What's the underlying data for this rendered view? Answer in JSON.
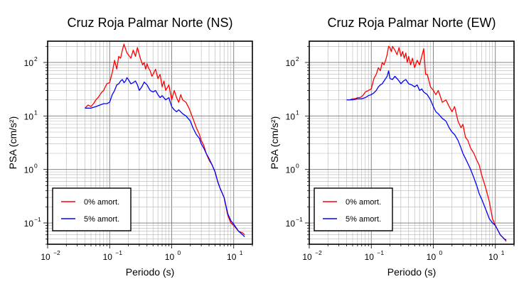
{
  "chart_data": [
    {
      "type": "line",
      "title": "Cruz Roja Palmar Norte (NS)",
      "xlabel": "Periodo (s)",
      "ylabel": "PSA (cm/s²)",
      "xscale": "log",
      "yscale": "log",
      "xlim": [
        0.01,
        20
      ],
      "ylim": [
        0.04,
        250
      ],
      "grid": true,
      "legend_position": "bottom-left",
      "x_ticks": [
        {
          "value": 0.01,
          "base": "10",
          "exp": "−2"
        },
        {
          "value": 0.1,
          "base": "10",
          "exp": "−1"
        },
        {
          "value": 1,
          "base": "10",
          "exp": "0"
        },
        {
          "value": 10,
          "base": "10",
          "exp": "1"
        }
      ],
      "y_ticks": [
        {
          "value": 0.1,
          "base": "10",
          "exp": "−1"
        },
        {
          "value": 1,
          "base": "10",
          "exp": "0"
        },
        {
          "value": 10,
          "base": "10",
          "exp": "1"
        },
        {
          "value": 100,
          "base": "10",
          "exp": "2"
        }
      ],
      "series": [
        {
          "name": "0% amort.",
          "color": "#ff0000",
          "x": [
            0.04,
            0.045,
            0.05,
            0.055,
            0.06,
            0.065,
            0.07,
            0.075,
            0.08,
            0.085,
            0.09,
            0.1,
            0.11,
            0.12,
            0.13,
            0.14,
            0.15,
            0.16,
            0.17,
            0.18,
            0.19,
            0.2,
            0.22,
            0.24,
            0.26,
            0.28,
            0.3,
            0.32,
            0.34,
            0.36,
            0.38,
            0.4,
            0.42,
            0.45,
            0.48,
            0.5,
            0.55,
            0.6,
            0.65,
            0.7,
            0.75,
            0.8,
            0.9,
            1.0,
            1.1,
            1.2,
            1.3,
            1.4,
            1.5,
            1.7,
            1.9,
            2.0,
            2.2,
            2.5,
            2.8,
            3.0,
            3.3,
            3.6,
            4.0,
            4.5,
            5.0,
            5.5,
            6.0,
            7.0,
            8.0,
            9.0,
            10.0,
            12.0,
            14.0,
            15.0
          ],
          "y": [
            14,
            16,
            15,
            17,
            20,
            22,
            25,
            28,
            30,
            35,
            40,
            42,
            65,
            110,
            75,
            130,
            120,
            170,
            220,
            180,
            150,
            140,
            120,
            170,
            130,
            190,
            140,
            110,
            90,
            100,
            75,
            95,
            80,
            70,
            55,
            60,
            75,
            50,
            60,
            35,
            45,
            30,
            38,
            20,
            30,
            22,
            18,
            25,
            20,
            18,
            14,
            12,
            9,
            6,
            4.5,
            3.5,
            2.8,
            2.0,
            1.5,
            1.2,
            0.9,
            0.6,
            0.45,
            0.3,
            0.14,
            0.1,
            0.09,
            0.07,
            0.065,
            0.06
          ]
        },
        {
          "name": "5% amort.",
          "color": "#0000ff",
          "x": [
            0.04,
            0.05,
            0.06,
            0.07,
            0.08,
            0.09,
            0.1,
            0.11,
            0.12,
            0.13,
            0.14,
            0.15,
            0.16,
            0.17,
            0.18,
            0.19,
            0.2,
            0.22,
            0.24,
            0.26,
            0.28,
            0.3,
            0.33,
            0.36,
            0.4,
            0.45,
            0.5,
            0.55,
            0.6,
            0.65,
            0.7,
            0.8,
            0.9,
            1.0,
            1.1,
            1.2,
            1.3,
            1.5,
            1.7,
            2.0,
            2.2,
            2.5,
            2.8,
            3.0,
            3.3,
            3.6,
            4.0,
            4.5,
            5.0,
            5.5,
            6.0,
            7.0,
            8.0,
            9.0,
            10.0,
            12.0,
            14.0,
            15.0
          ],
          "y": [
            14,
            14,
            15,
            16,
            17,
            17,
            18,
            25,
            30,
            38,
            40,
            45,
            48,
            42,
            45,
            52,
            48,
            40,
            42,
            45,
            38,
            30,
            35,
            43,
            38,
            30,
            28,
            30,
            25,
            22,
            24,
            20,
            22,
            15,
            13,
            12,
            13,
            11,
            10,
            8,
            6,
            4.5,
            3.8,
            3.0,
            2.5,
            2.0,
            1.6,
            1.2,
            0.9,
            0.6,
            0.45,
            0.3,
            0.15,
            0.11,
            0.095,
            0.07,
            0.06,
            0.055
          ]
        }
      ]
    },
    {
      "type": "line",
      "title": "Cruz Roja Palmar Norte (EW)",
      "xlabel": "Periodo (s)",
      "ylabel": "PSA (cm/s²)",
      "xscale": "log",
      "yscale": "log",
      "xlim": [
        0.01,
        20
      ],
      "ylim": [
        0.04,
        250
      ],
      "grid": true,
      "legend_position": "bottom-left",
      "x_ticks": [
        {
          "value": 0.01,
          "base": "10",
          "exp": "−2"
        },
        {
          "value": 0.1,
          "base": "10",
          "exp": "−1"
        },
        {
          "value": 1,
          "base": "10",
          "exp": "0"
        },
        {
          "value": 10,
          "base": "10",
          "exp": "1"
        }
      ],
      "y_ticks": [
        {
          "value": 0.1,
          "base": "10",
          "exp": "−1"
        },
        {
          "value": 1,
          "base": "10",
          "exp": "0"
        },
        {
          "value": 10,
          "base": "10",
          "exp": "1"
        },
        {
          "value": 100,
          "base": "10",
          "exp": "2"
        }
      ],
      "series": [
        {
          "name": "0% amort.",
          "color": "#ff0000",
          "x": [
            0.04,
            0.045,
            0.05,
            0.055,
            0.06,
            0.065,
            0.07,
            0.075,
            0.08,
            0.09,
            0.1,
            0.11,
            0.12,
            0.13,
            0.14,
            0.15,
            0.16,
            0.17,
            0.18,
            0.19,
            0.2,
            0.21,
            0.22,
            0.24,
            0.26,
            0.28,
            0.3,
            0.32,
            0.34,
            0.36,
            0.38,
            0.4,
            0.43,
            0.46,
            0.5,
            0.55,
            0.6,
            0.65,
            0.7,
            0.75,
            0.8,
            0.9,
            1.0,
            1.1,
            1.2,
            1.4,
            1.6,
            1.8,
            2.0,
            2.2,
            2.5,
            2.8,
            3.0,
            3.3,
            3.6,
            4.0,
            4.5,
            5.0,
            5.5,
            6.0,
            7.0,
            8.0,
            9.0,
            10.0,
            12.0,
            14.0,
            15.0
          ],
          "y": [
            20,
            20,
            21,
            21,
            22,
            22,
            23,
            25,
            28,
            30,
            32,
            50,
            60,
            80,
            70,
            100,
            90,
            110,
            140,
            200,
            190,
            160,
            200,
            170,
            140,
            190,
            130,
            160,
            120,
            150,
            100,
            130,
            90,
            120,
            80,
            110,
            90,
            130,
            180,
            60,
            60,
            35,
            30,
            25,
            30,
            18,
            20,
            15,
            12,
            15,
            8,
            6,
            7,
            4.0,
            3.5,
            2.5,
            2.0,
            1.5,
            1.2,
            0.8,
            0.45,
            0.25,
            0.12,
            0.09,
            0.06,
            0.05,
            0.045
          ]
        },
        {
          "name": "5% amort.",
          "color": "#0000ff",
          "x": [
            0.04,
            0.05,
            0.06,
            0.07,
            0.08,
            0.09,
            0.1,
            0.11,
            0.12,
            0.13,
            0.14,
            0.15,
            0.16,
            0.17,
            0.18,
            0.19,
            0.2,
            0.22,
            0.24,
            0.26,
            0.28,
            0.3,
            0.33,
            0.36,
            0.4,
            0.45,
            0.5,
            0.55,
            0.6,
            0.65,
            0.7,
            0.8,
            0.9,
            1.0,
            1.1,
            1.2,
            1.4,
            1.6,
            1.8,
            2.0,
            2.2,
            2.5,
            2.8,
            3.0,
            3.3,
            3.6,
            4.0,
            4.5,
            5.0,
            5.5,
            6.0,
            7.0,
            8.0,
            9.0,
            10.0,
            12.0,
            14.0,
            15.0
          ],
          "y": [
            20,
            20,
            21,
            21,
            22,
            24,
            25,
            27,
            30,
            35,
            38,
            40,
            45,
            50,
            55,
            70,
            50,
            48,
            55,
            50,
            45,
            40,
            45,
            48,
            40,
            38,
            35,
            38,
            30,
            32,
            28,
            25,
            20,
            15,
            12,
            11,
            9,
            8,
            6,
            5,
            4.5,
            3.5,
            2.5,
            2.0,
            1.6,
            1.3,
            1.0,
            0.7,
            0.5,
            0.35,
            0.28,
            0.18,
            0.12,
            0.1,
            0.09,
            0.06,
            0.05,
            0.048
          ]
        }
      ]
    }
  ]
}
